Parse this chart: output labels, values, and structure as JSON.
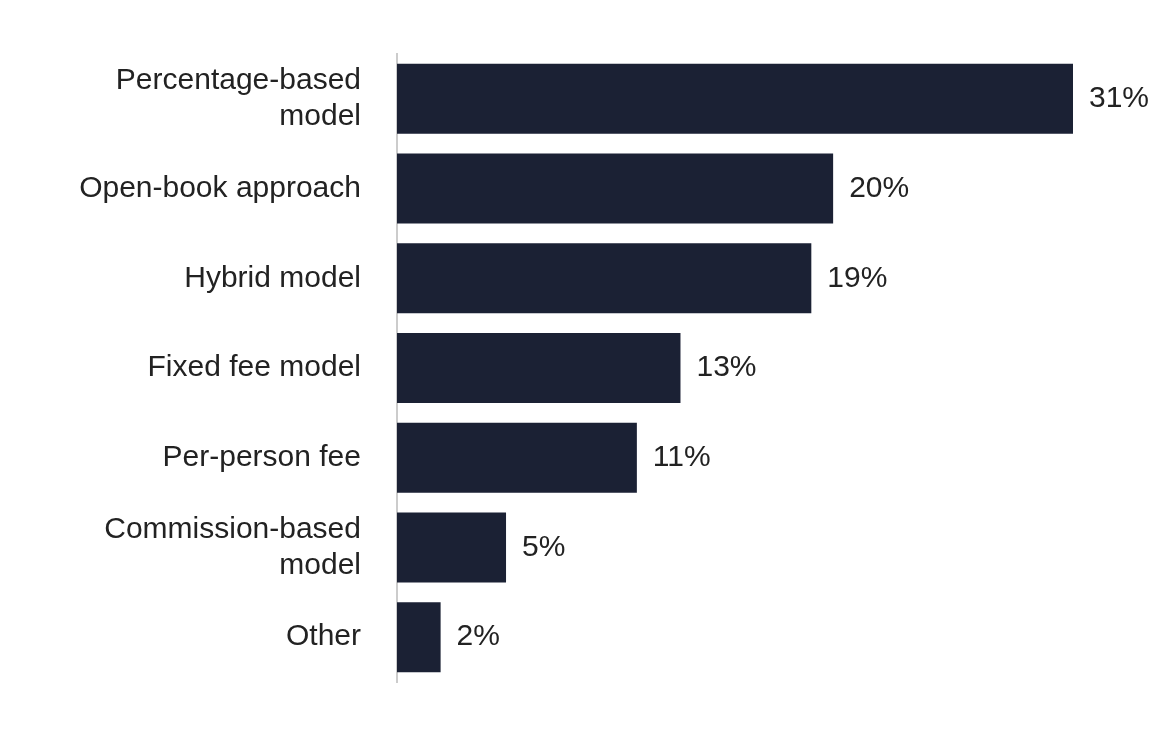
{
  "chart_data": {
    "type": "bar",
    "orientation": "horizontal",
    "categories": [
      "Percentage-based model",
      "Open-book approach",
      "Hybrid model",
      "Fixed fee model",
      "Per-person fee",
      "Commission-based model",
      "Other"
    ],
    "values": [
      31,
      20,
      19,
      13,
      11,
      5,
      2
    ],
    "color": "#1b2134",
    "data_labels": true,
    "value_labels": [
      "31%",
      "20%",
      "19%",
      "13%",
      "11%",
      "5%",
      "2%"
    ],
    "grid": false,
    "legend": false
  }
}
